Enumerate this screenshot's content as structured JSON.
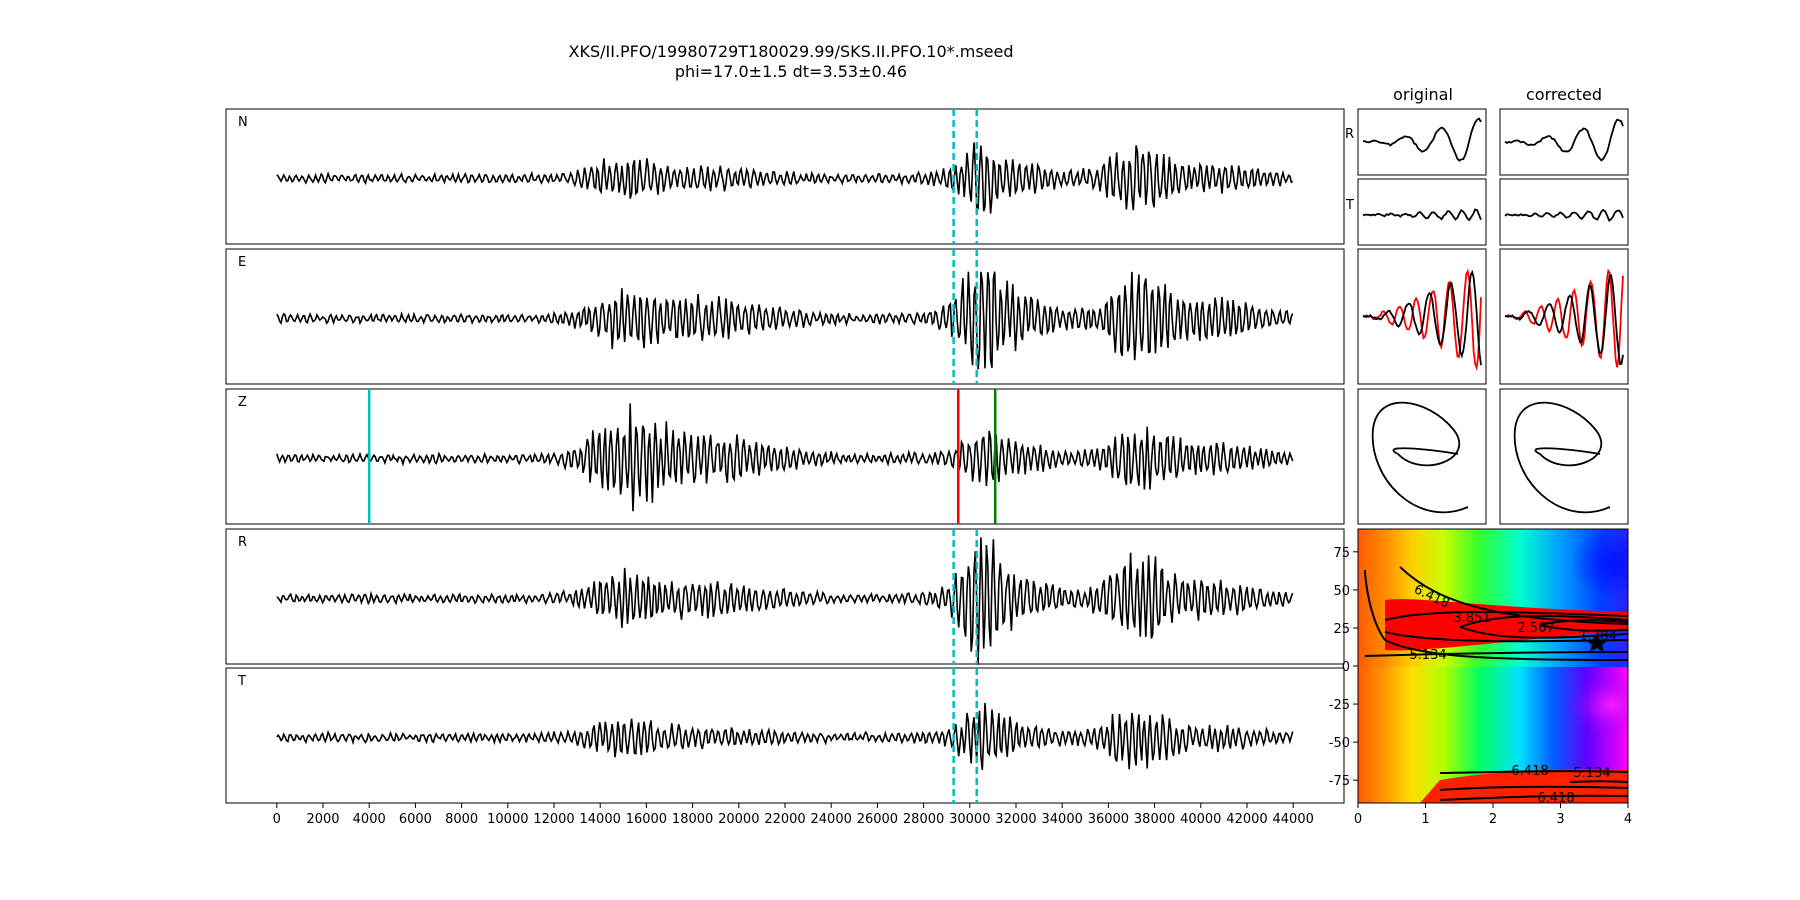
{
  "header": {
    "title": "XKS/II.PFO/19980729T180029.99/SKS.II.PFO.10*.mseed",
    "subtitle": "phi=17.0±1.5 dt=3.53±0.46"
  },
  "column_titles": {
    "original": "original",
    "corrected": "corrected"
  },
  "small_labels": {
    "r": "R",
    "t": "T"
  },
  "colors": {
    "trace": "#000000",
    "window_marker": "#00bfbf",
    "pick_cyan": "#00bfbf",
    "pick_red": "#ff0000",
    "pick_green": "#008000",
    "particle_red": "#ff0000"
  },
  "chart_data": [
    {
      "type": "line",
      "description_free": true,
      "panels": [
        "N",
        "E",
        "Z",
        "R",
        "T"
      ],
      "x_ticks": [
        0,
        2000,
        4000,
        6000,
        8000,
        10000,
        12000,
        14000,
        16000,
        18000,
        20000,
        22000,
        24000,
        26000,
        28000,
        30000,
        32000,
        34000,
        36000,
        38000,
        40000,
        42000,
        44000
      ],
      "xlim": [
        -2200,
        46200
      ],
      "data_range": [
        0,
        44000
      ],
      "window_markers_x": [
        29300,
        30300
      ],
      "window_marker_panels": [
        "N",
        "E",
        "R",
        "T"
      ],
      "z_picks": [
        {
          "x": 4000,
          "color": "cyan"
        },
        {
          "x": 29500,
          "color": "red"
        },
        {
          "x": 31100,
          "color": "green"
        }
      ]
    },
    {
      "type": "line",
      "grid": false,
      "columns": [
        "original",
        "corrected"
      ],
      "rows": [
        "R",
        "T",
        "particle-overlay",
        "particle-motion"
      ]
    },
    {
      "type": "heatmap",
      "xlim": [
        0,
        4
      ],
      "ylim": [
        -90,
        90
      ],
      "x_ticks": [
        0,
        1,
        2,
        3,
        4
      ],
      "y_ticks": [
        75,
        50,
        25,
        0,
        -25,
        -50,
        -75
      ],
      "contour_labels": [
        "6.418",
        "3.851",
        "2.567",
        "1.284",
        "5.134",
        "6.418",
        "5.134",
        "6.418"
      ],
      "best_point": {
        "dt": 3.53,
        "phi": 17.0
      }
    }
  ]
}
